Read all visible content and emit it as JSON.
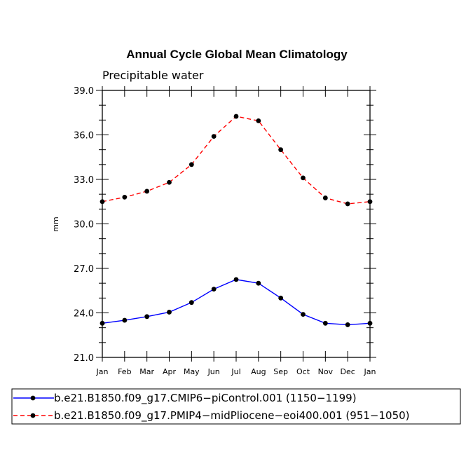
{
  "chart_data": {
    "type": "line",
    "title": "Annual Cycle Global Mean Climatology",
    "subtitle": "Precipitable water",
    "ylabel": "mm",
    "xlabel": "",
    "categories": [
      "Jan",
      "Feb",
      "Mar",
      "Apr",
      "May",
      "Jun",
      "Jul",
      "Aug",
      "Sep",
      "Oct",
      "Nov",
      "Dec",
      "Jan"
    ],
    "ylim": [
      21.0,
      39.0
    ],
    "yticks": [
      "21.0",
      "24.0",
      "27.0",
      "30.0",
      "33.0",
      "36.0",
      "39.0"
    ],
    "series": [
      {
        "name": "b.e21.B1850.f09_g17.CMIP6−piControl.001 (1150−1199)",
        "color": "#0000ff",
        "dash": "solid",
        "values": [
          23.3,
          23.5,
          23.75,
          24.05,
          24.7,
          25.6,
          26.25,
          26.0,
          25.0,
          23.9,
          23.3,
          23.2,
          23.3
        ]
      },
      {
        "name": "b.e21.B1850.f09_g17.PMIP4−midPliocene−eoi400.001 (951−1050)",
        "color": "#ff0000",
        "dash": "dashed",
        "values": [
          31.5,
          31.8,
          32.2,
          32.8,
          34.0,
          35.9,
          37.25,
          36.95,
          35.0,
          33.1,
          31.75,
          31.35,
          31.5
        ]
      }
    ],
    "legend_position": "bottom"
  }
}
